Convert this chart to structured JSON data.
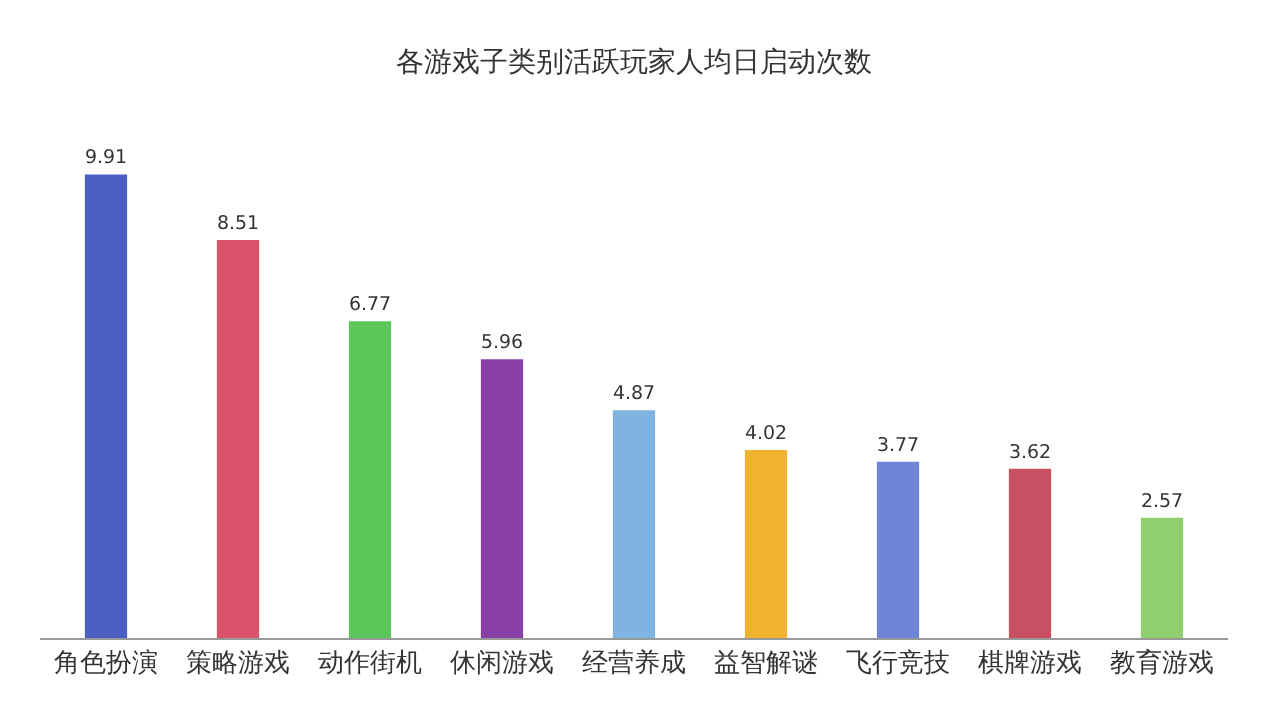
{
  "chart_data": {
    "type": "bar",
    "title": "各游戏子类别活跃玩家人均日启动次数",
    "categories": [
      "角色扮演",
      "策略游戏",
      "动作街机",
      "休闲游戏",
      "经营养成",
      "益智解谜",
      "飞行竞技",
      "棋牌游戏",
      "教育游戏"
    ],
    "values": [
      9.91,
      8.51,
      6.77,
      5.96,
      4.87,
      4.02,
      3.77,
      3.62,
      2.57
    ],
    "colors": [
      "#4a5fc1",
      "#d9546a",
      "#5cc65a",
      "#8a3fa6",
      "#7fb4e0",
      "#f0b330",
      "#6f86d6",
      "#c94f63",
      "#8fcf6f"
    ],
    "data_labels": true
  }
}
